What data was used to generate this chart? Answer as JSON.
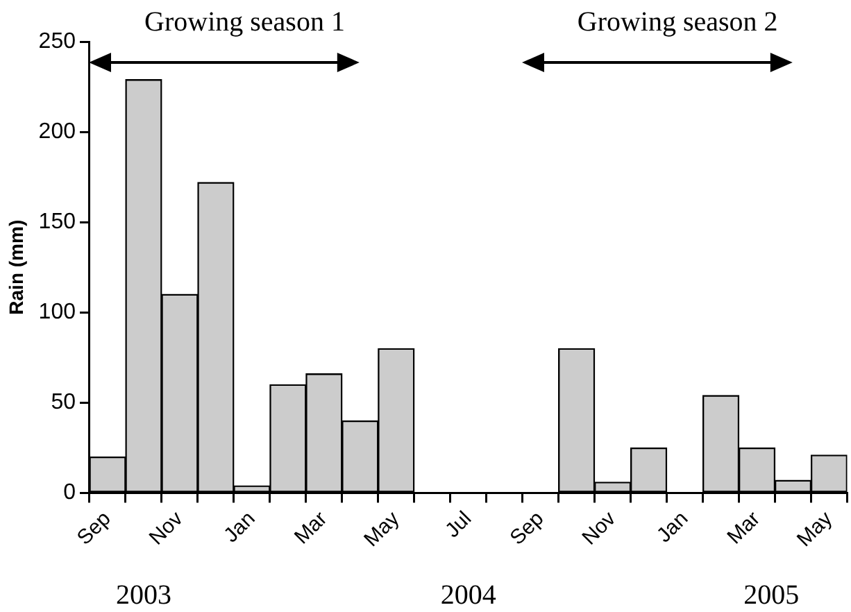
{
  "chart_data": {
    "type": "bar",
    "ylabel": "Rain (mm)",
    "categories": [
      "Sep",
      null,
      "Nov",
      null,
      "Jan",
      null,
      "Mar",
      null,
      "May",
      null,
      "Jul",
      null,
      "Sep",
      null,
      "Nov",
      null,
      "Jan",
      null,
      "Mar",
      null,
      "May"
    ],
    "values": [
      20,
      229,
      110,
      172,
      4,
      60,
      66,
      40,
      80,
      0,
      0,
      0,
      0,
      80,
      6,
      25,
      0,
      54,
      25,
      7,
      21
    ],
    "color": "#cccccc",
    "ylim": [
      0,
      250
    ],
    "yticks": [
      0,
      50,
      100,
      150,
      200,
      250
    ],
    "grid": false,
    "annotations": [
      "Growing season 1",
      "Growing season 2",
      "2003",
      "2004",
      "2005"
    ]
  }
}
